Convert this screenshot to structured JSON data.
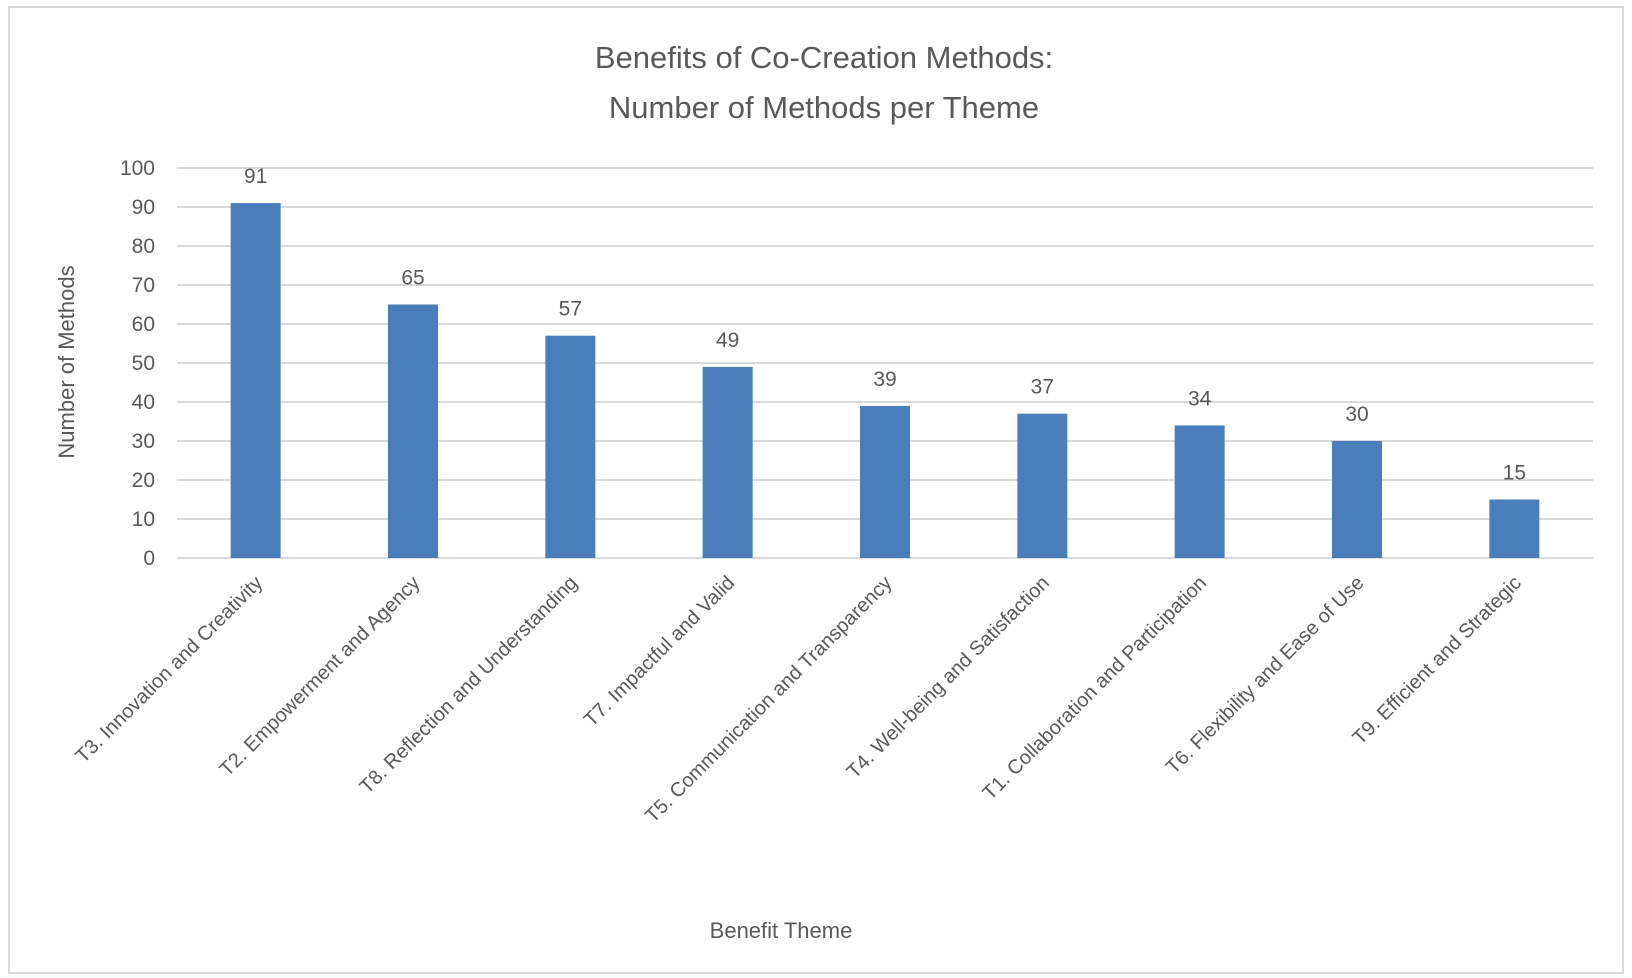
{
  "chart_data": {
    "type": "bar",
    "title": [
      "Benefits of Co-Creation Methods:",
      "Number of Methods per Theme"
    ],
    "xlabel": "Benefit Theme",
    "ylabel": "Number of Methods",
    "ylim": [
      0,
      100
    ],
    "yticks": [
      0,
      10,
      20,
      30,
      40,
      50,
      60,
      70,
      80,
      90,
      100
    ],
    "grid": true,
    "legend": "none",
    "categories": [
      "T3. Innovation and Creativity",
      "T2. Empowerment and Agency",
      "T8. Reflection and Understanding",
      "T7. Impactful and Valid",
      "T5. Communication and Transparency",
      "T4. Well-being and Satisfaction",
      "T1. Collaboration and Participation",
      "T6. Flexibility and Ease of Use",
      "T9. Efficient and Strategic"
    ],
    "values": [
      91,
      65,
      57,
      49,
      39,
      37,
      34,
      30,
      15
    ],
    "data_labels": true,
    "colors": {
      "bar": "#4a7ebb",
      "grid": "#d9d9d9",
      "text": "#595959"
    }
  }
}
